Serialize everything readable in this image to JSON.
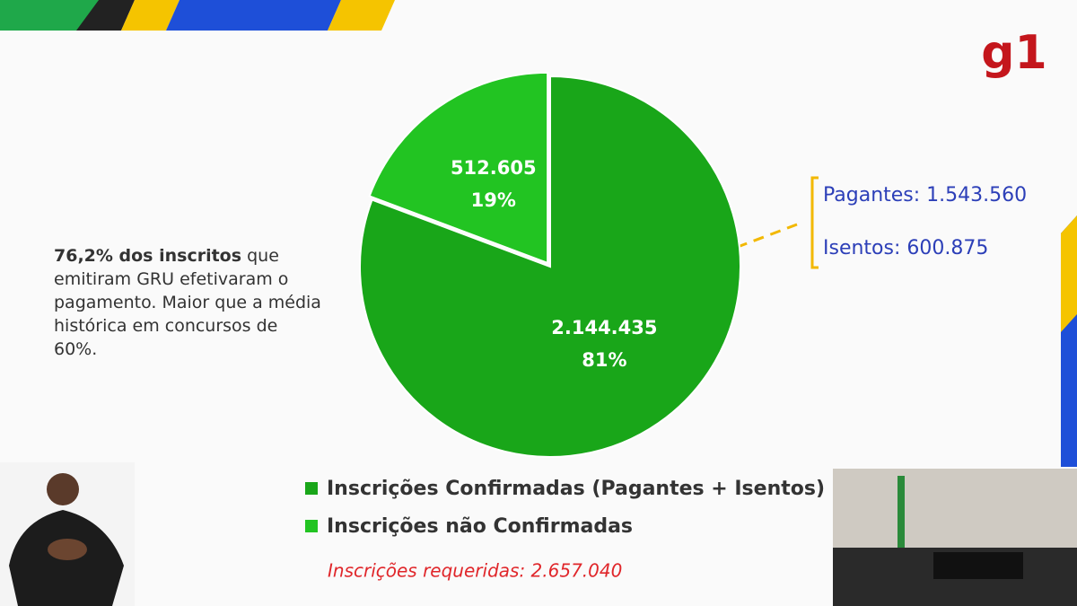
{
  "chart_data": {
    "type": "pie",
    "categories": [
      "Inscrições Confirmadas (Pagantes + Isentos)",
      "Inscrições não Confirmadas"
    ],
    "values": [
      2144435,
      512605
    ],
    "value_labels": [
      "2.144.435",
      "512.605"
    ],
    "percent_labels": [
      "81%",
      "19%"
    ],
    "colors": [
      "#19a619",
      "#22c422"
    ],
    "callout": [
      "Pagantes: 1.543.560",
      "Isentos: 600.875"
    ],
    "annotation": {
      "bold": "76,2% dos inscritos",
      "text": " que emitiram GRU efetivaram o pagamento. Maior que a média histórica em concursos de 60%."
    },
    "footer": "Inscrições requeridas: 2.657.040"
  },
  "logo": "g1"
}
